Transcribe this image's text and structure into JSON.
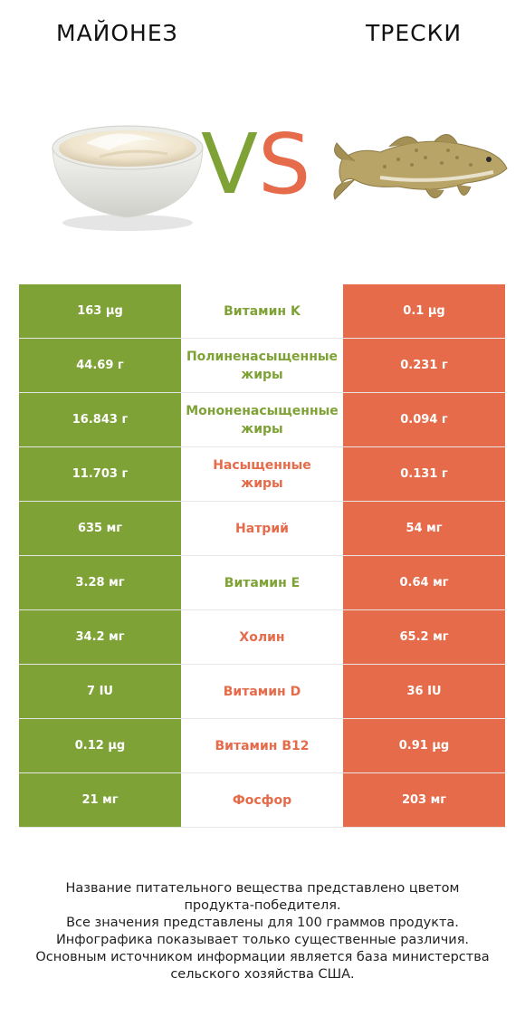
{
  "header": {
    "left_title": "МАЙОНЕЗ",
    "right_title": "ТРЕСКИ"
  },
  "vs": {
    "v": "V",
    "s": "S"
  },
  "colors": {
    "winner_left": "#7ea236",
    "winner_right": "#e56b4a"
  },
  "rows": [
    {
      "left": "163 µg",
      "name": "Витамин K",
      "right": "0.1 µg",
      "winner": "left"
    },
    {
      "left": "44.69 г",
      "name": "Полиненасыщенные\nжиры",
      "right": "0.231 г",
      "winner": "left"
    },
    {
      "left": "16.843 г",
      "name": "Мононенасыщенные\nжиры",
      "right": "0.094 г",
      "winner": "left"
    },
    {
      "left": "11.703 г",
      "name": "Насыщенные\nжиры",
      "right": "0.131 г",
      "winner": "right"
    },
    {
      "left": "635 мг",
      "name": "Натрий",
      "right": "54 мг",
      "winner": "right"
    },
    {
      "left": "3.28 мг",
      "name": "Витамин E",
      "right": "0.64 мг",
      "winner": "left"
    },
    {
      "left": "34.2 мг",
      "name": "Холин",
      "right": "65.2 мг",
      "winner": "right"
    },
    {
      "left": "7 IU",
      "name": "Витамин D",
      "right": "36 IU",
      "winner": "right"
    },
    {
      "left": "0.12 µg",
      "name": "Витамин B12",
      "right": "0.91 µg",
      "winner": "right"
    },
    {
      "left": "21 мг",
      "name": "Фосфор",
      "right": "203 мг",
      "winner": "right"
    }
  ],
  "footer": {
    "line1": "Название питательного вещества представлено цветом",
    "line2": "продукта-победителя.",
    "line3": "Все значения представлены для 100 граммов продукта.",
    "line4": "Инфографика показывает только существенные различия.",
    "line5": "Основным источником информации является база министерства",
    "line6": "сельского хозяйства США."
  }
}
